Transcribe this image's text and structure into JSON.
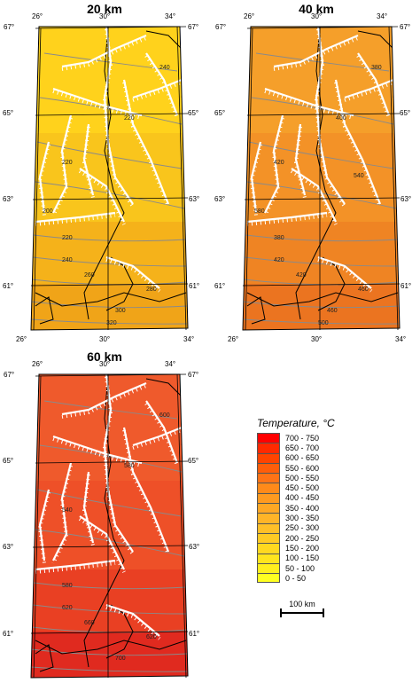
{
  "panels": [
    {
      "title": "20 km",
      "fill_colors": [
        "#ffd21c",
        "#f9c51c",
        "#f5b21a",
        "#f0a418"
      ],
      "contour_labels": [
        "240",
        "220",
        "220",
        "220",
        "240",
        "260",
        "280",
        "300",
        "320",
        "200"
      ]
    },
    {
      "title": "40 km",
      "fill_colors": [
        "#f59f2a",
        "#f39227",
        "#ef8423",
        "#eb7420"
      ],
      "contour_labels": [
        "380",
        "400",
        "420",
        "380",
        "420",
        "420",
        "460",
        "460",
        "500",
        "580",
        "540"
      ]
    },
    {
      "title": "60 km",
      "fill_colors": [
        "#ef5a2c",
        "#ee5028",
        "#e94023",
        "#e02a1f"
      ],
      "contour_labels": [
        "600",
        "580",
        "540",
        "580",
        "620",
        "660",
        "620",
        "700"
      ]
    }
  ],
  "axis_labels": {
    "lon": [
      "26°",
      "30°",
      "34°"
    ],
    "lat": [
      "67°",
      "65°",
      "63°",
      "61°"
    ]
  },
  "legend": {
    "title": "Temperature, °C",
    "entries": [
      {
        "label": "700 - 750",
        "color": "#ff0000"
      },
      {
        "label": "650 - 700",
        "color": "#ff2a00"
      },
      {
        "label": "600 - 650",
        "color": "#ff4400"
      },
      {
        "label": "550 - 600",
        "color": "#ff5e0a"
      },
      {
        "label": "500 - 550",
        "color": "#ff7316"
      },
      {
        "label": "450 - 500",
        "color": "#ff8a1a"
      },
      {
        "label": "400 - 450",
        "color": "#ff9a20"
      },
      {
        "label": "350 - 400",
        "color": "#ffa724"
      },
      {
        "label": "300 - 350",
        "color": "#ffb428"
      },
      {
        "label": "250 - 300",
        "color": "#ffbf28"
      },
      {
        "label": "200 - 250",
        "color": "#ffca24"
      },
      {
        "label": "150 - 200",
        "color": "#ffd820"
      },
      {
        "label": "100 - 150",
        "color": "#ffe41e"
      },
      {
        "label": "50 - 100",
        "color": "#ffef1e"
      },
      {
        "label": "0 - 50",
        "color": "#ffff22"
      }
    ]
  },
  "scale_bar": {
    "label": "100 km"
  }
}
